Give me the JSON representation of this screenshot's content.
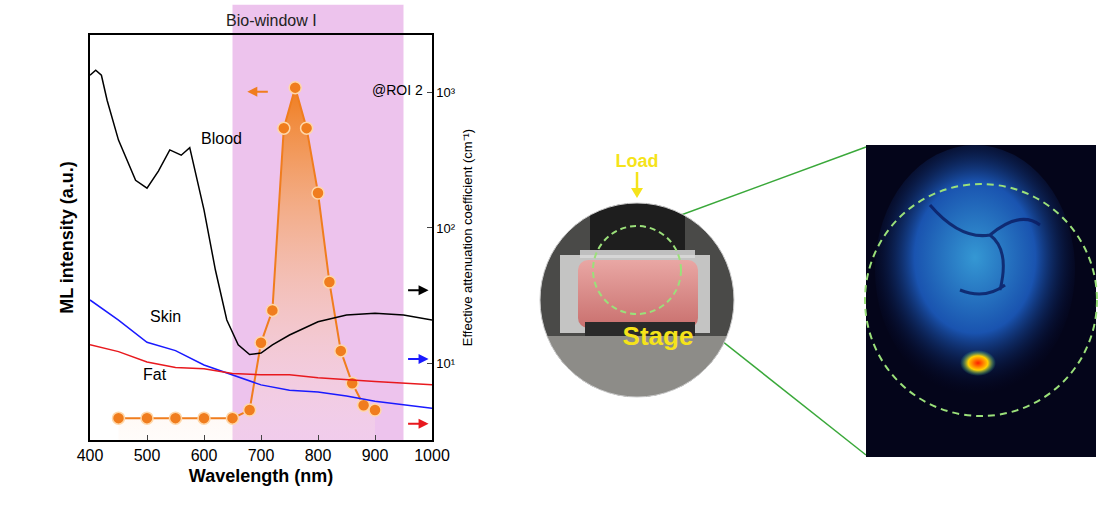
{
  "chart_data": {
    "type": "line",
    "x_label": "Wavelength (nm)",
    "y_label": "ML intensity (a.u.)",
    "y2_label": "Effective attenuation coefficient (cm⁻¹)",
    "annotation": "@ROI 2",
    "bio_window": {
      "label": "Bio-window I",
      "x_range": [
        650,
        950
      ],
      "color": "#e8b4e8"
    },
    "xlim": [
      400,
      1000
    ],
    "xticks": [
      400,
      500,
      600,
      700,
      800,
      900,
      1000
    ],
    "ylim": [
      0,
      100
    ],
    "y2lim": [
      2.75,
      2630
    ],
    "y2ticks": [
      {
        "value": 10,
        "label": "10¹"
      },
      {
        "value": 100,
        "label": "10²"
      },
      {
        "value": 1000,
        "label": "10³"
      }
    ],
    "log": "y2",
    "grid": false,
    "series": [
      {
        "color": "#f07d1e",
        "marker": "circle",
        "axis": "y",
        "x": [
          450,
          500,
          550,
          600,
          650,
          680,
          700,
          720,
          740,
          760,
          780,
          800,
          820,
          840,
          860,
          880,
          900
        ],
        "values": [
          5.4,
          5.4,
          5.4,
          5.4,
          5.4,
          7.4,
          24,
          32,
          77,
          87,
          77,
          61,
          39,
          22,
          14,
          8.6,
          7.4
        ]
      },
      {
        "name": "Blood",
        "color": "#000000",
        "axis": "y2",
        "x": [
          400,
          410,
          420,
          430,
          450,
          480,
          500,
          520,
          540,
          560,
          575,
          600,
          620,
          640,
          660,
          680,
          700,
          720,
          750,
          800,
          850,
          900,
          950,
          1000
        ],
        "values": [
          1330,
          1450,
          1330,
          870,
          443,
          224,
          196,
          262,
          375,
          343,
          390,
          136,
          49,
          21,
          13.8,
          11.7,
          12,
          13.8,
          16.3,
          20.4,
          22.9,
          23.6,
          22.9,
          21
        ]
      },
      {
        "name": "Skin",
        "color": "#1a1aff",
        "axis": "y2",
        "x": [
          400,
          450,
          500,
          550,
          600,
          650,
          700,
          750,
          800,
          850,
          900,
          1000
        ],
        "values": [
          29.5,
          21,
          14.4,
          12.5,
          9.8,
          8.3,
          7.0,
          6.4,
          6.2,
          5.8,
          5.3,
          4.7
        ]
      },
      {
        "name": "Fat",
        "color": "#e8191e",
        "axis": "y2",
        "x": [
          400,
          450,
          500,
          550,
          600,
          650,
          700,
          750,
          800,
          850,
          900,
          1000
        ],
        "values": [
          13.8,
          12.3,
          10.3,
          9.4,
          9.2,
          8.5,
          8.3,
          8.3,
          7.9,
          7.6,
          7.4,
          7.0
        ]
      }
    ]
  },
  "photo": {
    "load_label": "Load",
    "stage_label": "Stage"
  }
}
